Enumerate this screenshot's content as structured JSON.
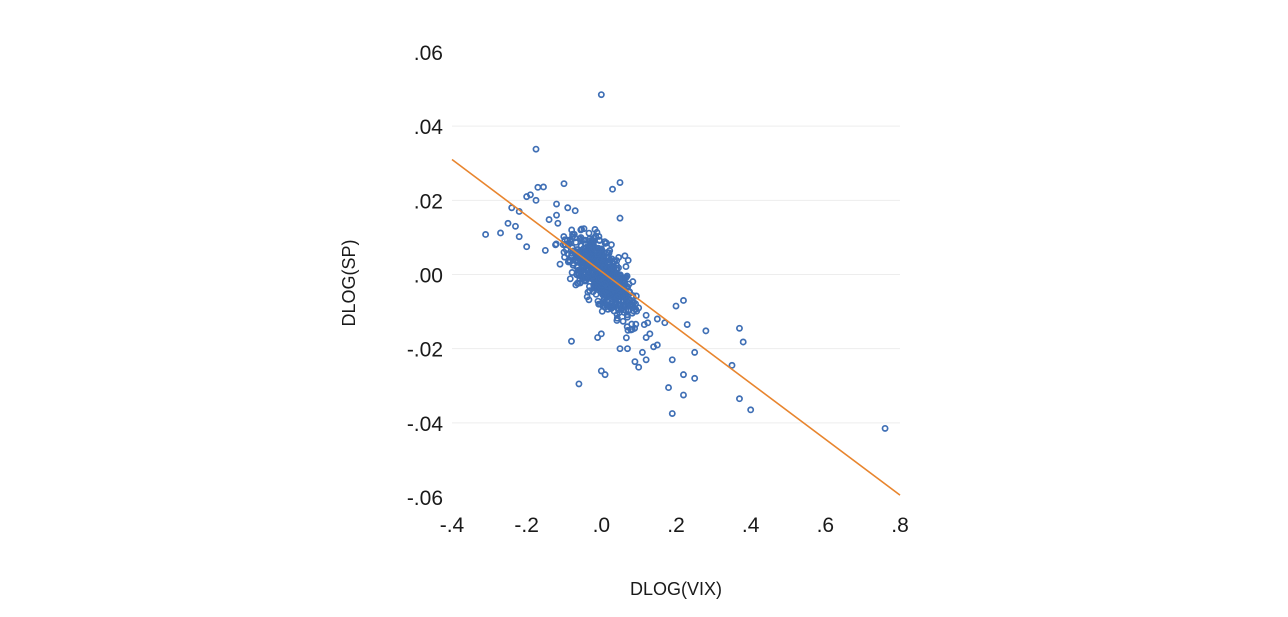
{
  "chart_data": {
    "type": "scatter",
    "title": "",
    "xlabel": "DLOG(VIX)",
    "ylabel": "DLOG(SP)",
    "xlim": [
      -0.4,
      0.8
    ],
    "ylim": [
      -0.06,
      0.06
    ],
    "x_ticks": [
      -0.4,
      -0.2,
      0.0,
      0.2,
      0.4,
      0.6,
      0.8
    ],
    "x_tick_labels": [
      "-.4",
      "-.2",
      ".0",
      ".2",
      ".4",
      ".6",
      ".8"
    ],
    "y_ticks": [
      -0.06,
      -0.04,
      -0.02,
      0.0,
      0.02,
      0.04,
      0.06
    ],
    "y_tick_labels": [
      "-.06",
      "-.04",
      "-.02",
      ".00",
      ".02",
      ".04",
      ".06"
    ],
    "grid": "horizontal",
    "legend": "none",
    "marker_color": "#3f6fb5",
    "fit_color": "#e8852e",
    "points": [
      [
        0.0,
        0.0485
      ],
      [
        -0.175,
        0.0338
      ],
      [
        0.05,
        0.0248
      ],
      [
        -0.17,
        0.0235
      ],
      [
        -0.155,
        0.0236
      ],
      [
        -0.1,
        0.0245
      ],
      [
        0.03,
        0.023
      ],
      [
        -0.19,
        0.0215
      ],
      [
        -0.2,
        0.021
      ],
      [
        -0.175,
        0.02
      ],
      [
        -0.12,
        0.019
      ],
      [
        -0.09,
        0.018
      ],
      [
        -0.07,
        0.0172
      ],
      [
        -0.24,
        0.018
      ],
      [
        -0.22,
        0.017
      ],
      [
        -0.12,
        0.016
      ],
      [
        0.05,
        0.0152
      ],
      [
        -0.14,
        0.0148
      ],
      [
        -0.25,
        0.0138
      ],
      [
        -0.23,
        0.013
      ],
      [
        -0.31,
        0.0108
      ],
      [
        -0.27,
        0.0112
      ],
      [
        -0.22,
        0.0102
      ],
      [
        -0.2,
        0.0075
      ],
      [
        -0.15,
        0.0065
      ],
      [
        -0.1,
        0.006
      ],
      [
        -0.05,
        0.005
      ],
      [
        0.08,
        -0.008
      ],
      [
        0.1,
        -0.009
      ],
      [
        0.12,
        -0.011
      ],
      [
        0.15,
        -0.012
      ],
      [
        0.2,
        -0.0085
      ],
      [
        0.22,
        -0.007
      ],
      [
        0.17,
        -0.013
      ],
      [
        0.23,
        -0.0135
      ],
      [
        0.28,
        -0.0152
      ],
      [
        0.13,
        -0.016
      ],
      [
        0.12,
        -0.017
      ],
      [
        0.15,
        -0.019
      ],
      [
        0.11,
        -0.021
      ],
      [
        0.12,
        -0.023
      ],
      [
        0.09,
        -0.0235
      ],
      [
        0.07,
        -0.02
      ],
      [
        0.05,
        -0.02
      ],
      [
        0.0,
        -0.016
      ],
      [
        -0.01,
        -0.017
      ],
      [
        -0.08,
        -0.018
      ],
      [
        0.19,
        -0.023
      ],
      [
        0.25,
        -0.021
      ],
      [
        0.22,
        -0.027
      ],
      [
        0.25,
        -0.028
      ],
      [
        0.18,
        -0.0305
      ],
      [
        0.22,
        -0.0325
      ],
      [
        0.35,
        -0.0245
      ],
      [
        0.37,
        -0.0145
      ],
      [
        0.38,
        -0.0182
      ],
      [
        0.37,
        -0.0335
      ],
      [
        0.4,
        -0.0365
      ],
      [
        0.19,
        -0.0375
      ],
      [
        0.76,
        -0.0415
      ],
      [
        0.0,
        -0.026
      ],
      [
        0.01,
        -0.027
      ],
      [
        -0.06,
        -0.0295
      ],
      [
        0.1,
        -0.025
      ],
      [
        0.14,
        -0.0195
      ]
    ],
    "points_note_cluster": "dense cluster around origin",
    "fit_line": {
      "x": [
        -0.4,
        0.8
      ],
      "y": [
        0.031,
        -0.0595
      ]
    }
  }
}
